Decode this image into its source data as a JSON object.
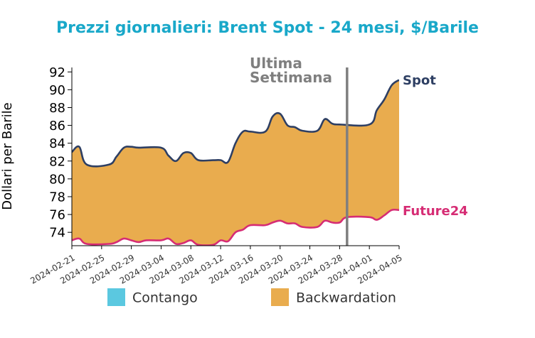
{
  "chart_data": {
    "type": "area",
    "title": "Prezzi giornalieri: Brent Spot - 24 mesi, $/Barile",
    "ylabel": "Dollari per Barile",
    "xlabel": "",
    "ylim": [
      72.5,
      92.5
    ],
    "yticks": [
      74,
      76,
      78,
      80,
      82,
      84,
      86,
      88,
      90,
      92
    ],
    "xlim": [
      "2024-02-21",
      "2024-04-05"
    ],
    "xticks": [
      "2024-02-21",
      "2024-02-25",
      "2024-02-29",
      "2024-03-04",
      "2024-03-08",
      "2024-03-12",
      "2024-03-16",
      "2024-03-20",
      "2024-03-24",
      "2024-03-28",
      "2024-04-01",
      "2024-04-05"
    ],
    "annotation": {
      "text_line1": "Ultima",
      "text_line2": "Settimana",
      "x": "2024-03-29"
    },
    "series": [
      {
        "name": "Spot",
        "color": "#2e3f63",
        "points": [
          [
            "2024-02-21",
            83.0
          ],
          [
            "2024-02-22",
            83.6
          ],
          [
            "2024-02-23",
            81.6
          ],
          [
            "2024-02-26",
            81.6
          ],
          [
            "2024-02-27",
            82.5
          ],
          [
            "2024-02-28",
            83.5
          ],
          [
            "2024-02-29",
            83.6
          ],
          [
            "2024-03-01",
            83.5
          ],
          [
            "2024-03-04",
            83.5
          ],
          [
            "2024-03-05",
            82.6
          ],
          [
            "2024-03-06",
            82.0
          ],
          [
            "2024-03-07",
            82.9
          ],
          [
            "2024-03-08",
            82.9
          ],
          [
            "2024-03-09",
            82.1
          ],
          [
            "2024-03-11",
            82.1
          ],
          [
            "2024-03-12",
            82.1
          ],
          [
            "2024-03-13",
            81.9
          ],
          [
            "2024-03-14",
            84.0
          ],
          [
            "2024-03-15",
            85.3
          ],
          [
            "2024-03-16",
            85.3
          ],
          [
            "2024-03-18",
            85.3
          ],
          [
            "2024-03-19",
            87.0
          ],
          [
            "2024-03-20",
            87.3
          ],
          [
            "2024-03-21",
            86.0
          ],
          [
            "2024-03-22",
            85.8
          ],
          [
            "2024-03-23",
            85.4
          ],
          [
            "2024-03-25",
            85.4
          ],
          [
            "2024-03-26",
            86.7
          ],
          [
            "2024-03-27",
            86.2
          ],
          [
            "2024-03-28",
            86.1
          ],
          [
            "2024-04-01",
            86.1
          ],
          [
            "2024-04-02",
            87.7
          ],
          [
            "2024-04-03",
            88.9
          ],
          [
            "2024-04-04",
            90.5
          ],
          [
            "2024-04-05",
            91.1
          ]
        ]
      },
      {
        "name": "Future24",
        "color": "#d62c74",
        "points": [
          [
            "2024-02-21",
            73.1
          ],
          [
            "2024-02-22",
            73.3
          ],
          [
            "2024-02-23",
            72.7
          ],
          [
            "2024-02-26",
            72.7
          ],
          [
            "2024-02-27",
            72.9
          ],
          [
            "2024-02-28",
            73.3
          ],
          [
            "2024-02-29",
            73.1
          ],
          [
            "2024-03-01",
            72.9
          ],
          [
            "2024-03-02",
            73.1
          ],
          [
            "2024-03-04",
            73.1
          ],
          [
            "2024-03-05",
            73.3
          ],
          [
            "2024-03-06",
            72.7
          ],
          [
            "2024-03-07",
            72.8
          ],
          [
            "2024-03-08",
            73.1
          ],
          [
            "2024-03-09",
            72.6
          ],
          [
            "2024-03-11",
            72.6
          ],
          [
            "2024-03-12",
            73.1
          ],
          [
            "2024-03-13",
            73.0
          ],
          [
            "2024-03-14",
            74.0
          ],
          [
            "2024-03-15",
            74.3
          ],
          [
            "2024-03-16",
            74.8
          ],
          [
            "2024-03-18",
            74.8
          ],
          [
            "2024-03-19",
            75.1
          ],
          [
            "2024-03-20",
            75.3
          ],
          [
            "2024-03-21",
            75.0
          ],
          [
            "2024-03-22",
            75.0
          ],
          [
            "2024-03-23",
            74.6
          ],
          [
            "2024-03-25",
            74.6
          ],
          [
            "2024-03-26",
            75.3
          ],
          [
            "2024-03-27",
            75.1
          ],
          [
            "2024-03-28",
            75.1
          ],
          [
            "2024-03-29",
            75.7
          ],
          [
            "2024-04-01",
            75.7
          ],
          [
            "2024-04-02",
            75.4
          ],
          [
            "2024-04-03",
            75.9
          ],
          [
            "2024-04-04",
            76.5
          ],
          [
            "2024-04-05",
            76.5
          ]
        ]
      }
    ],
    "legend": {
      "position": "bottom",
      "items": [
        {
          "label": "Contango",
          "color": "#5bc8e0"
        },
        {
          "label": "Backwardation",
          "color": "#e9ac4e"
        }
      ]
    },
    "title_color": "#19a8c9",
    "annotation_line_color": "#7f7f7f",
    "grid": false
  }
}
